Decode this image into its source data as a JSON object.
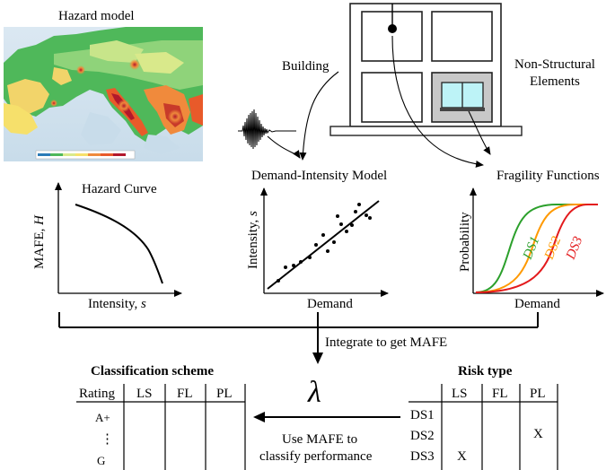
{
  "hazard_model": {
    "title": "Hazard model"
  },
  "building": {
    "label": "Building",
    "nonstructural_line1": "Non-Structural",
    "nonstructural_line2": "Elements"
  },
  "hazard_curve": {
    "title": "Hazard Curve",
    "ylabel_text": "MAFE, ",
    "ylabel_var": "H",
    "xlabel_text": "Intensity, ",
    "xlabel_var": "s"
  },
  "demand_intensity": {
    "title": "Demand-Intensity Model",
    "ylabel_text": "Intensity, ",
    "ylabel_var": "s",
    "xlabel": "Demand"
  },
  "fragility": {
    "title": "Fragility Functions",
    "ylabel": "Probability",
    "xlabel": "Demand",
    "curves": [
      {
        "name": "DS1",
        "color": "#2ca02c"
      },
      {
        "name": "DS2",
        "color": "#ff9900"
      },
      {
        "name": "DS3",
        "color": "#e31a1c"
      }
    ]
  },
  "integrate": {
    "label": "Integrate to get MAFE"
  },
  "lambda_symbol": "λ",
  "use_mafe": {
    "line1": "Use MAFE to",
    "line2": "classify performance"
  },
  "classification": {
    "title": "Classification scheme",
    "columns": [
      "Rating",
      "LS",
      "FL",
      "PL"
    ],
    "ratings": [
      "A+",
      "⋮",
      "G"
    ]
  },
  "risk_type": {
    "title": "Risk type",
    "columns": [
      "LS",
      "FL",
      "PL"
    ],
    "rows": [
      {
        "name": "DS1",
        "LS": "",
        "FL": "",
        "PL": ""
      },
      {
        "name": "DS2",
        "LS": "",
        "FL": "",
        "PL": "X"
      },
      {
        "name": "DS3",
        "LS": "X",
        "FL": "",
        "PL": ""
      }
    ]
  }
}
